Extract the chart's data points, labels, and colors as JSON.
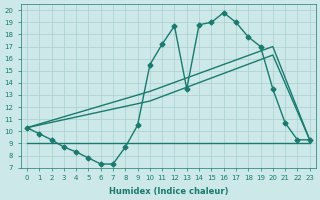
{
  "line1_x": [
    0,
    1,
    2,
    3,
    4,
    5,
    6,
    7,
    8,
    9,
    10,
    11,
    12,
    13,
    14,
    15,
    16,
    17,
    18,
    19,
    20,
    21,
    22,
    23
  ],
  "line1_y": [
    10.3,
    9.8,
    9.3,
    8.7,
    8.3,
    7.8,
    7.3,
    7.3,
    8.7,
    10.5,
    15.5,
    17.2,
    18.7,
    13.5,
    18.8,
    19.0,
    19.8,
    19.0,
    17.8,
    17.0,
    13.5,
    10.7,
    9.3,
    9.3
  ],
  "line2_x": [
    0,
    10,
    20,
    23
  ],
  "line2_y": [
    10.3,
    13.3,
    17.0,
    9.3
  ],
  "line3_x": [
    0,
    10,
    20,
    23
  ],
  "line3_y": [
    10.3,
    12.5,
    16.3,
    9.3
  ],
  "line4_x": [
    0,
    2,
    23
  ],
  "line4_y": [
    9.0,
    9.0,
    9.0
  ],
  "line_color": "#1a7a6e",
  "bg_color": "#cce8e8",
  "grid_color": "#aacfcf",
  "xlabel": "Humidex (Indice chaleur)",
  "ylim": [
    7,
    20.5
  ],
  "xlim": [
    -0.5,
    23.5
  ],
  "yticks": [
    7,
    8,
    9,
    10,
    11,
    12,
    13,
    14,
    15,
    16,
    17,
    18,
    19,
    20
  ],
  "xticks": [
    0,
    1,
    2,
    3,
    4,
    5,
    6,
    7,
    8,
    9,
    10,
    11,
    12,
    13,
    14,
    15,
    16,
    17,
    18,
    19,
    20,
    21,
    22,
    23
  ],
  "marker": "D",
  "markersize": 2.5,
  "linewidth": 1.0
}
